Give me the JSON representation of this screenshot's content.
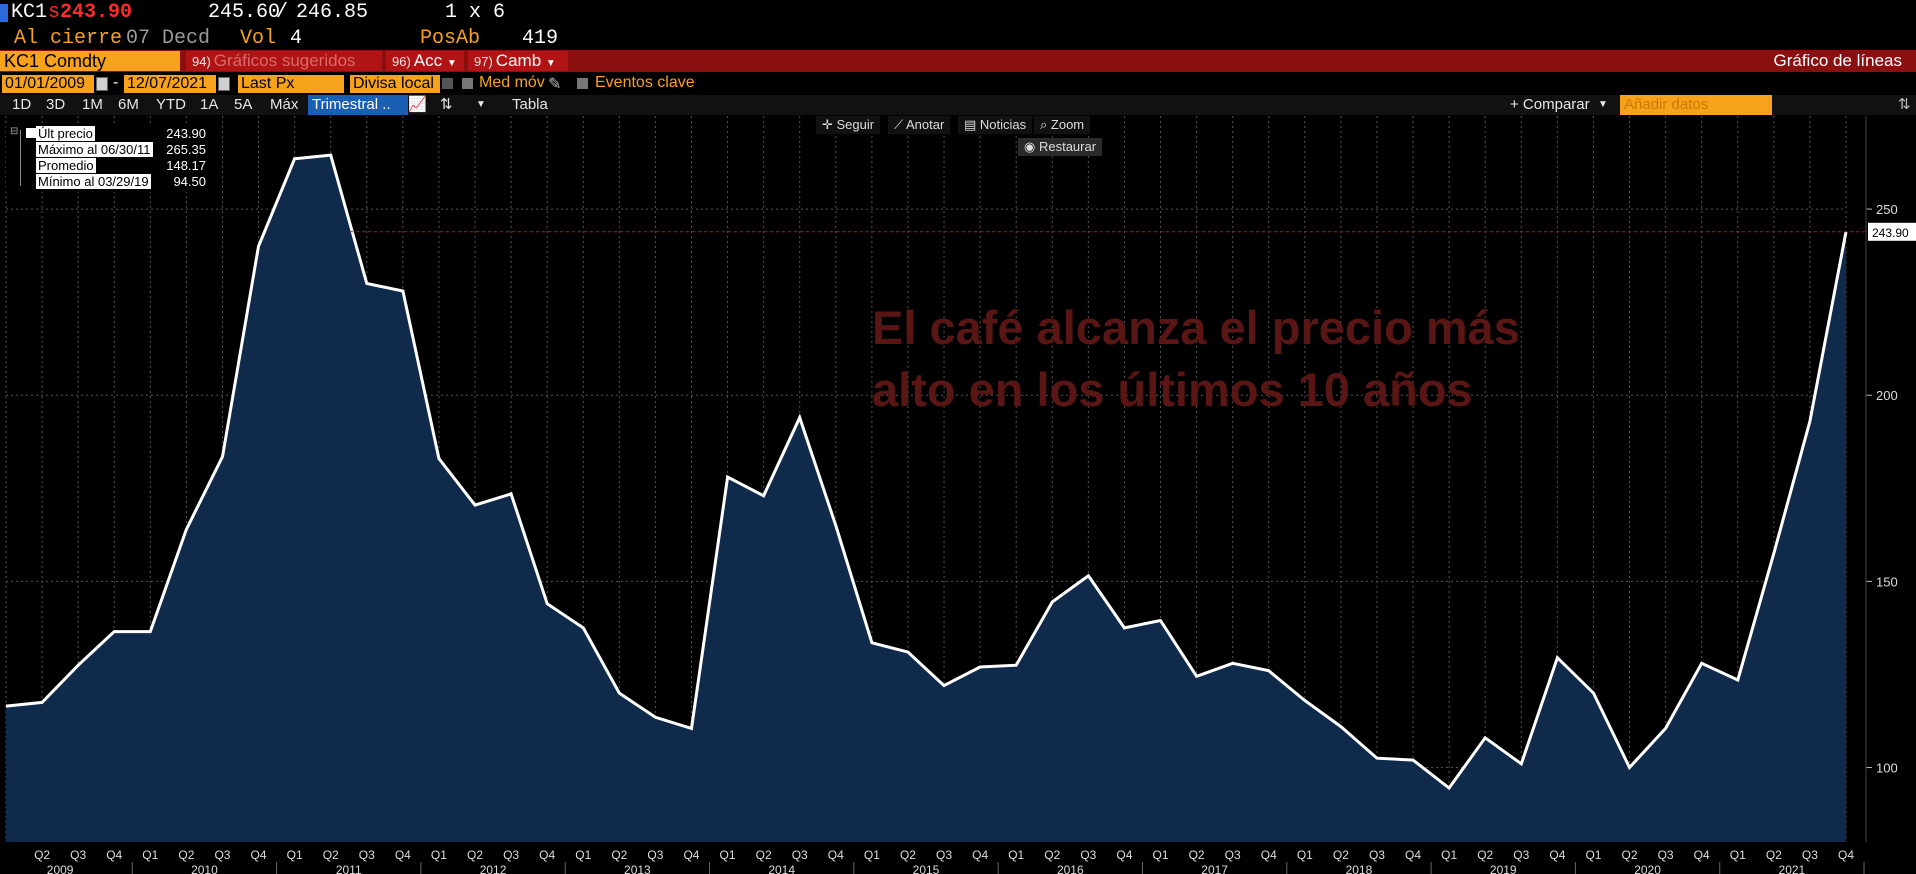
{
  "quote": {
    "ticker": "KC1",
    "currency_symbol": "s",
    "last": "243.90",
    "bid": "245.60",
    "sep": "/",
    "ask": "246.85",
    "size": "1 x 6",
    "close_label": "Al cierre",
    "close_date": "07 Decd",
    "vol_label": "Vol",
    "vol_value": "4",
    "oi_label": "PosAb",
    "oi_value": "419"
  },
  "toolbar": {
    "security": "KC1 Comdty",
    "suggested_num": "94)",
    "suggested_label": "Gráficos sugeridos",
    "actions_num": "96)",
    "actions_label": "Acc",
    "change_num": "97)",
    "change_label": "Camb",
    "chart_type": "Gráfico de líneas"
  },
  "daterow": {
    "start_date": "01/01/2009",
    "dash": "-",
    "end_date": "12/07/2021",
    "field": "Last Px",
    "currency": "Divisa local",
    "moving_avg": "Med móv",
    "key_events": "Eventos clave"
  },
  "rangerow": {
    "ranges": [
      "1D",
      "3D",
      "1M",
      "6M",
      "YTD",
      "1A",
      "5A",
      "Máx"
    ],
    "period": "Trimestral ..",
    "table": "Tabla",
    "compare": "+ Comparar",
    "add_data_placeholder": "Añadir datos"
  },
  "tools": {
    "follow": "Seguir",
    "annotate": "Anotar",
    "news": "Noticias",
    "zoom": "Zoom",
    "reset": "Restaurar"
  },
  "legend": {
    "last_label": "Últ precio",
    "last_value": "243.90",
    "max_label": "Máximo al 06/30/11",
    "max_value": "265.35",
    "avg_label": "Promedio",
    "avg_value": "148.17",
    "min_label": "Mínimo al 03/29/19",
    "min_value": "94.50"
  },
  "annotation": {
    "line1": "El café alcanza el precio más",
    "line2": "alto en los últimos 10 años"
  },
  "colors": {
    "line": "#ffffff",
    "fill": "#0f2a4a",
    "annotation": "#5a1515",
    "ref_line": "#b01818",
    "orange": "#f7a21b",
    "red_bar": "#8a1010"
  },
  "chart_data": {
    "type": "area",
    "ylim": [
      80,
      275
    ],
    "y_ticks": [
      100,
      150,
      200,
      250
    ],
    "last_value_label": "243.90",
    "reference_line": 243.9,
    "grid": true,
    "x_quarter_labels": [
      "Q1",
      "Q2",
      "Q3",
      "Q4"
    ],
    "years": [
      "2009",
      "2010",
      "2011",
      "2012",
      "2013",
      "2014",
      "2015",
      "2016",
      "2017",
      "2018",
      "2019",
      "2020",
      "2021"
    ],
    "series": [
      {
        "values": [
          116.5,
          117.5,
          127.5,
          136.5,
          136.5,
          164,
          183.5,
          240,
          263.5,
          264.5,
          230,
          228,
          183,
          170.5,
          173.5,
          144,
          137.5,
          120,
          113.5,
          110.5,
          178,
          173,
          194,
          165,
          133.5,
          131,
          122,
          127,
          127.5,
          144.5,
          151.5,
          137.5,
          139.5,
          124.5,
          128,
          126,
          118,
          111,
          102.5,
          102,
          94.5,
          108,
          101,
          129.5,
          120,
          100,
          110.5,
          128,
          123.5,
          157.5,
          193,
          243.9
        ]
      }
    ]
  }
}
